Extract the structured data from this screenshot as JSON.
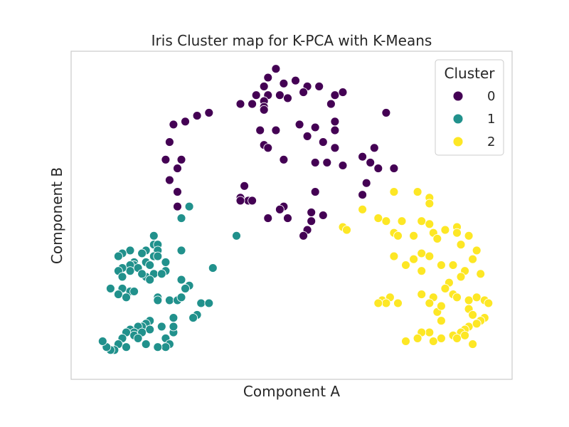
{
  "chart_data": {
    "type": "scatter",
    "title": "Iris Cluster map for K-PCA with K-Means",
    "xlabel": "Component A",
    "ylabel": "Component B",
    "xlim": [
      -0.06,
      1.06
    ],
    "ylim": [
      -0.06,
      1.06
    ],
    "xticks_visible": false,
    "yticks_visible": false,
    "grid": false,
    "legend": {
      "title": "Cluster",
      "placement": "top-right"
    },
    "colors": {
      "0": "#440154",
      "1": "#21918c",
      "2": "#fde725"
    },
    "series": [
      {
        "name": "0",
        "color": "#440154",
        "points": [
          [
            0.46,
            1.0
          ],
          [
            0.44,
            0.97
          ],
          [
            0.51,
            0.96
          ],
          [
            0.48,
            0.95
          ],
          [
            0.54,
            0.94
          ],
          [
            0.57,
            0.94
          ],
          [
            0.43,
            0.94
          ],
          [
            0.41,
            0.91
          ],
          [
            0.44,
            0.91
          ],
          [
            0.47,
            0.91
          ],
          [
            0.49,
            0.9
          ],
          [
            0.53,
            0.92
          ],
          [
            0.61,
            0.91
          ],
          [
            0.63,
            0.92
          ],
          [
            0.43,
            0.89
          ],
          [
            0.4,
            0.88
          ],
          [
            0.37,
            0.88
          ],
          [
            0.43,
            0.87
          ],
          [
            0.43,
            0.86
          ],
          [
            0.29,
            0.85
          ],
          [
            0.26,
            0.84
          ],
          [
            0.23,
            0.82
          ],
          [
            0.2,
            0.81
          ],
          [
            0.6,
            0.88
          ],
          [
            0.74,
            0.85
          ],
          [
            0.61,
            0.82
          ],
          [
            0.52,
            0.81
          ],
          [
            0.56,
            0.8
          ],
          [
            0.42,
            0.79
          ],
          [
            0.46,
            0.79
          ],
          [
            0.61,
            0.79
          ],
          [
            0.54,
            0.77
          ],
          [
            0.19,
            0.75
          ],
          [
            0.43,
            0.74
          ],
          [
            0.44,
            0.73
          ],
          [
            0.58,
            0.75
          ],
          [
            0.61,
            0.73
          ],
          [
            0.71,
            0.73
          ],
          [
            0.68,
            0.7
          ],
          [
            0.7,
            0.68
          ],
          [
            0.48,
            0.69
          ],
          [
            0.56,
            0.68
          ],
          [
            0.59,
            0.68
          ],
          [
            0.18,
            0.69
          ],
          [
            0.22,
            0.69
          ],
          [
            0.63,
            0.67
          ],
          [
            0.72,
            0.66
          ],
          [
            0.76,
            0.66
          ],
          [
            0.21,
            0.66
          ],
          [
            0.19,
            0.62
          ],
          [
            0.69,
            0.61
          ],
          [
            0.38,
            0.6
          ],
          [
            0.21,
            0.58
          ],
          [
            0.56,
            0.58
          ],
          [
            0.68,
            0.57
          ],
          [
            0.37,
            0.56
          ],
          [
            0.39,
            0.55
          ],
          [
            0.4,
            0.55
          ],
          [
            0.37,
            0.55
          ],
          [
            0.21,
            0.53
          ],
          [
            0.48,
            0.53
          ],
          [
            0.47,
            0.52
          ],
          [
            0.55,
            0.51
          ],
          [
            0.44,
            0.49
          ],
          [
            0.58,
            0.5
          ],
          [
            0.55,
            0.48
          ],
          [
            0.49,
            0.49
          ],
          [
            0.54,
            0.45
          ],
          [
            0.53,
            0.43
          ]
        ]
      },
      {
        "name": "1",
        "color": "#21918c",
        "points": [
          [
            0.24,
            0.53
          ],
          [
            0.22,
            0.49
          ],
          [
            0.15,
            0.43
          ],
          [
            0.36,
            0.43
          ],
          [
            0.15,
            0.4
          ],
          [
            0.16,
            0.4
          ],
          [
            0.16,
            0.38
          ],
          [
            0.09,
            0.38
          ],
          [
            0.13,
            0.38
          ],
          [
            0.22,
            0.38
          ],
          [
            0.07,
            0.37
          ],
          [
            0.12,
            0.37
          ],
          [
            0.15,
            0.36
          ],
          [
            0.16,
            0.36
          ],
          [
            0.06,
            0.36
          ],
          [
            0.1,
            0.34
          ],
          [
            0.13,
            0.34
          ],
          [
            0.1,
            0.33
          ],
          [
            0.18,
            0.34
          ],
          [
            0.09,
            0.33
          ],
          [
            0.18,
            0.31
          ],
          [
            0.3,
            0.32
          ],
          [
            0.09,
            0.31
          ],
          [
            0.11,
            0.32
          ],
          [
            0.07,
            0.32
          ],
          [
            0.14,
            0.33
          ],
          [
            0.06,
            0.31
          ],
          [
            0.13,
            0.29
          ],
          [
            0.15,
            0.3
          ],
          [
            0.12,
            0.3
          ],
          [
            0.14,
            0.28
          ],
          [
            0.17,
            0.3
          ],
          [
            0.22,
            0.28
          ],
          [
            0.07,
            0.29
          ],
          [
            0.24,
            0.26
          ],
          [
            0.23,
            0.25
          ],
          [
            0.04,
            0.25
          ],
          [
            0.07,
            0.25
          ],
          [
            0.09,
            0.24
          ],
          [
            0.06,
            0.23
          ],
          [
            0.08,
            0.22
          ],
          [
            0.1,
            0.24
          ],
          [
            0.16,
            0.22
          ],
          [
            0.16,
            0.21
          ],
          [
            0.19,
            0.21
          ],
          [
            0.21,
            0.21
          ],
          [
            0.22,
            0.22
          ],
          [
            0.27,
            0.2
          ],
          [
            0.29,
            0.2
          ],
          [
            0.26,
            0.16
          ],
          [
            0.25,
            0.15
          ],
          [
            0.2,
            0.15
          ],
          [
            0.14,
            0.14
          ],
          [
            0.13,
            0.13
          ],
          [
            0.12,
            0.12
          ],
          [
            0.11,
            0.12
          ],
          [
            0.09,
            0.11
          ],
          [
            0.1,
            0.1
          ],
          [
            0.08,
            0.1
          ],
          [
            0.07,
            0.08
          ],
          [
            0.06,
            0.06
          ],
          [
            0.06,
            0.06
          ],
          [
            0.05,
            0.04
          ],
          [
            0.04,
            0.04
          ],
          [
            0.03,
            0.05
          ],
          [
            0.02,
            0.07
          ],
          [
            0.1,
            0.09
          ],
          [
            0.14,
            0.11
          ],
          [
            0.12,
            0.1
          ],
          [
            0.17,
            0.12
          ],
          [
            0.2,
            0.1
          ],
          [
            0.2,
            0.12
          ],
          [
            0.18,
            0.08
          ],
          [
            0.19,
            0.06
          ],
          [
            0.18,
            0.05
          ],
          [
            0.16,
            0.05
          ],
          [
            0.11,
            0.08
          ],
          [
            0.13,
            0.06
          ],
          [
            0.08,
            0.05
          ]
        ]
      },
      {
        "name": "2",
        "color": "#fde725",
        "points": [
          [
            0.76,
            0.58
          ],
          [
            0.82,
            0.58
          ],
          [
            0.85,
            0.56
          ],
          [
            0.85,
            0.54
          ],
          [
            0.68,
            0.52
          ],
          [
            0.72,
            0.49
          ],
          [
            0.74,
            0.48
          ],
          [
            0.78,
            0.48
          ],
          [
            0.83,
            0.48
          ],
          [
            0.85,
            0.47
          ],
          [
            0.92,
            0.46
          ],
          [
            0.95,
            0.43
          ],
          [
            0.86,
            0.44
          ],
          [
            0.92,
            0.44
          ],
          [
            0.63,
            0.46
          ],
          [
            0.64,
            0.45
          ],
          [
            0.76,
            0.44
          ],
          [
            0.77,
            0.43
          ],
          [
            0.81,
            0.43
          ],
          [
            0.89,
            0.45
          ],
          [
            0.87,
            0.42
          ],
          [
            0.93,
            0.4
          ],
          [
            0.97,
            0.38
          ],
          [
            0.96,
            0.35
          ],
          [
            0.83,
            0.37
          ],
          [
            0.85,
            0.36
          ],
          [
            0.81,
            0.35
          ],
          [
            0.76,
            0.36
          ],
          [
            0.79,
            0.33
          ],
          [
            0.83,
            0.31
          ],
          [
            0.88,
            0.33
          ],
          [
            0.91,
            0.33
          ],
          [
            0.94,
            0.31
          ],
          [
            0.98,
            0.3
          ],
          [
            0.93,
            0.29
          ],
          [
            0.9,
            0.27
          ],
          [
            0.89,
            0.25
          ],
          [
            0.91,
            0.23
          ],
          [
            0.86,
            0.22
          ],
          [
            0.83,
            0.23
          ],
          [
            0.92,
            0.22
          ],
          [
            0.95,
            0.21
          ],
          [
            0.97,
            0.22
          ],
          [
            0.99,
            0.21
          ],
          [
            1.0,
            0.2
          ],
          [
            0.95,
            0.18
          ],
          [
            0.96,
            0.16
          ],
          [
            0.99,
            0.15
          ],
          [
            0.98,
            0.14
          ],
          [
            0.97,
            0.13
          ],
          [
            0.95,
            0.12
          ],
          [
            0.94,
            0.11
          ],
          [
            0.93,
            0.1
          ],
          [
            0.91,
            0.09
          ],
          [
            0.88,
            0.08
          ],
          [
            0.85,
            0.1
          ],
          [
            0.83,
            0.1
          ],
          [
            0.88,
            0.14
          ],
          [
            0.87,
            0.17
          ],
          [
            0.88,
            0.19
          ],
          [
            0.85,
            0.2
          ],
          [
            0.75,
            0.22
          ],
          [
            0.73,
            0.21
          ],
          [
            0.77,
            0.2
          ],
          [
            0.74,
            0.2
          ],
          [
            0.72,
            0.2
          ],
          [
            0.82,
            0.08
          ],
          [
            0.79,
            0.07
          ],
          [
            0.86,
            0.07
          ],
          [
            0.92,
            0.08
          ],
          [
            0.94,
            0.09
          ],
          [
            0.97,
            0.13
          ],
          [
            0.96,
            0.06
          ]
        ]
      }
    ]
  }
}
